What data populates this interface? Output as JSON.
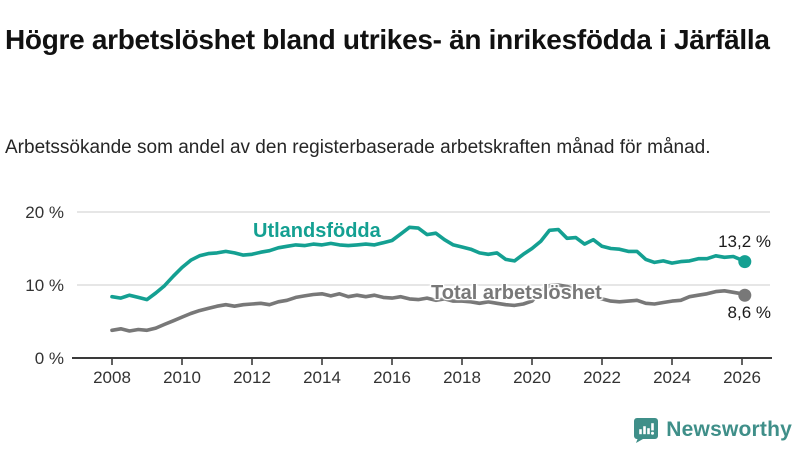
{
  "header": {
    "title": "Högre arbetslöshet bland utrikes- än inrikesfödda i Järfälla",
    "subtitle": "Arbetssökande som andel av den registerbaserade arbetskraften månad för månad."
  },
  "chart_data": {
    "type": "line",
    "title": "Högre arbetslöshet bland utrikes- än inrikesfödda i Järfälla",
    "subtitle": "Arbetssökande som andel av den registerbaserade arbetskraften månad för månad.",
    "grid": "horizontal-only",
    "legend_position": "inline-labels-on-lines",
    "x_axis": {
      "range": [
        2008,
        2026.3
      ],
      "ticks": [
        {
          "value": 2008,
          "label": "2008"
        },
        {
          "value": 2010,
          "label": "2010"
        },
        {
          "value": 2012,
          "label": "2012"
        },
        {
          "value": 2014,
          "label": "2014"
        },
        {
          "value": 2016,
          "label": "2016"
        },
        {
          "value": 2018,
          "label": "2018"
        },
        {
          "value": 2020,
          "label": "2020"
        },
        {
          "value": 2022,
          "label": "2022"
        },
        {
          "value": 2024,
          "label": "2024"
        },
        {
          "value": 2026,
          "label": "2026"
        }
      ]
    },
    "y_axis": {
      "range": [
        0,
        21.5
      ],
      "unit": "%",
      "ticks": [
        {
          "value": 0,
          "label": "0 %"
        },
        {
          "value": 10,
          "label": "10 %"
        },
        {
          "value": 20,
          "label": "20 %"
        }
      ]
    },
    "series": [
      {
        "name": "Utlandsfödda",
        "color": "#14a092",
        "end_value": 13.2,
        "end_value_label": "13,2 %",
        "x": [
          2008,
          2008.25,
          2008.5,
          2008.75,
          2009,
          2009.25,
          2009.5,
          2009.75,
          2010,
          2010.25,
          2010.5,
          2010.75,
          2011,
          2011.25,
          2011.5,
          2011.75,
          2012,
          2012.25,
          2012.5,
          2012.75,
          2013,
          2013.25,
          2013.5,
          2013.75,
          2014,
          2014.25,
          2014.5,
          2014.75,
          2015,
          2015.25,
          2015.5,
          2015.75,
          2016,
          2016.25,
          2016.5,
          2016.75,
          2017,
          2017.25,
          2017.5,
          2017.75,
          2018,
          2018.25,
          2018.5,
          2018.75,
          2019,
          2019.25,
          2019.5,
          2019.75,
          2020,
          2020.25,
          2020.5,
          2020.75,
          2021,
          2021.25,
          2021.5,
          2021.75,
          2022,
          2022.25,
          2022.5,
          2022.75,
          2023,
          2023.25,
          2023.5,
          2023.75,
          2024,
          2024.25,
          2024.5,
          2024.75,
          2025,
          2025.25,
          2025.5,
          2025.75,
          2026,
          2026.08
        ],
        "values": [
          8.4,
          8.2,
          8.6,
          8.3,
          8.0,
          8.9,
          9.9,
          11.2,
          12.4,
          13.4,
          14.0,
          14.3,
          14.4,
          14.6,
          14.4,
          14.1,
          14.2,
          14.5,
          14.7,
          15.1,
          15.3,
          15.5,
          15.4,
          15.6,
          15.5,
          15.7,
          15.5,
          15.4,
          15.5,
          15.6,
          15.5,
          15.8,
          16.1,
          17.0,
          17.9,
          17.8,
          16.9,
          17.1,
          16.2,
          15.5,
          15.2,
          14.9,
          14.4,
          14.2,
          14.4,
          13.5,
          13.3,
          14.2,
          15.0,
          16.0,
          17.5,
          17.6,
          16.4,
          16.5,
          15.6,
          16.2,
          15.3,
          15.0,
          14.9,
          14.6,
          14.6,
          13.5,
          13.1,
          13.3,
          13.0,
          13.2,
          13.3,
          13.6,
          13.6,
          14.0,
          13.8,
          13.9,
          13.4,
          13.2
        ]
      },
      {
        "name": "Total arbetslöshet",
        "color": "#787878",
        "end_value": 8.6,
        "end_value_label": "8,6 %",
        "x": [
          2008,
          2008.25,
          2008.5,
          2008.75,
          2009,
          2009.25,
          2009.5,
          2009.75,
          2010,
          2010.25,
          2010.5,
          2010.75,
          2011,
          2011.25,
          2011.5,
          2011.75,
          2012,
          2012.25,
          2012.5,
          2012.75,
          2013,
          2013.25,
          2013.5,
          2013.75,
          2014,
          2014.25,
          2014.5,
          2014.75,
          2015,
          2015.25,
          2015.5,
          2015.75,
          2016,
          2016.25,
          2016.5,
          2016.75,
          2017,
          2017.25,
          2017.5,
          2017.75,
          2018,
          2018.25,
          2018.5,
          2018.75,
          2019,
          2019.25,
          2019.5,
          2019.75,
          2020,
          2020.25,
          2020.5,
          2020.75,
          2021,
          2021.25,
          2021.5,
          2021.75,
          2022,
          2022.25,
          2022.5,
          2022.75,
          2023,
          2023.25,
          2023.5,
          2023.75,
          2024,
          2024.25,
          2024.5,
          2024.75,
          2025,
          2025.25,
          2025.5,
          2025.75,
          2026,
          2026.08
        ],
        "values": [
          3.8,
          4.0,
          3.7,
          3.9,
          3.8,
          4.1,
          4.6,
          5.1,
          5.6,
          6.1,
          6.5,
          6.8,
          7.1,
          7.3,
          7.1,
          7.3,
          7.4,
          7.5,
          7.3,
          7.7,
          7.9,
          8.3,
          8.5,
          8.7,
          8.8,
          8.5,
          8.8,
          8.4,
          8.6,
          8.4,
          8.6,
          8.3,
          8.2,
          8.4,
          8.1,
          8.0,
          8.2,
          7.9,
          8.1,
          7.8,
          7.8,
          7.7,
          7.5,
          7.7,
          7.5,
          7.3,
          7.2,
          7.4,
          7.8,
          9.2,
          9.9,
          10.0,
          9.8,
          9.4,
          8.9,
          8.5,
          8.1,
          7.8,
          7.7,
          7.8,
          7.9,
          7.5,
          7.4,
          7.6,
          7.8,
          7.9,
          8.4,
          8.6,
          8.8,
          9.1,
          9.2,
          9.0,
          8.8,
          8.6
        ]
      }
    ],
    "colors": {
      "axis": "#3a3a3a",
      "gridline": "#dddddd",
      "tick_label": "#333333",
      "value_label": "#1a1a1a"
    }
  },
  "footer": {
    "brand": "Newsworthy",
    "brand_color": "#3f8f89",
    "logo_icon": "bar-chart-speech-bubble"
  }
}
